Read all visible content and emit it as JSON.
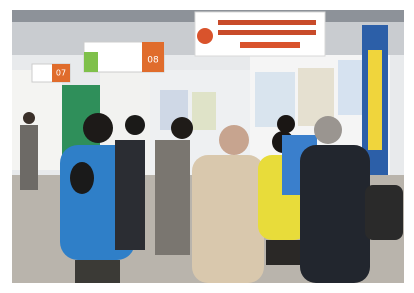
{
  "signs": [
    {
      "number": "07"
    },
    {
      "number": "08"
    }
  ]
}
